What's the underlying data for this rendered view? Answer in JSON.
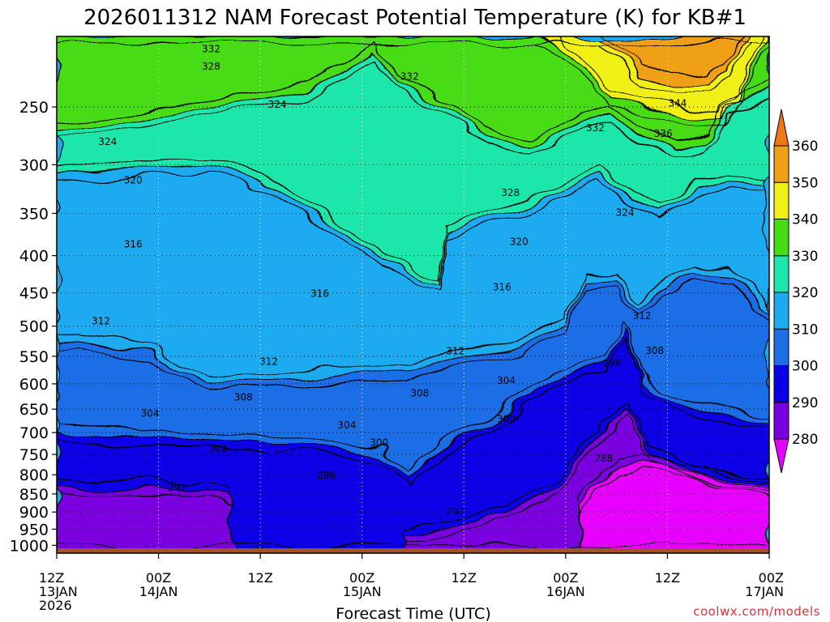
{
  "chart_data": {
    "type": "contour",
    "title": "2026011312 NAM Forecast Potential Temperature (K) for KB#1",
    "xlabel": "Forecast Time (UTC)",
    "credit": "coolwx.com/models",
    "x_ticks": [
      {
        "hour": 0,
        "lines": [
          "12Z",
          "13JAN",
          "2026"
        ]
      },
      {
        "hour": 12,
        "lines": [
          "00Z",
          "14JAN"
        ]
      },
      {
        "hour": 24,
        "lines": [
          "12Z"
        ]
      },
      {
        "hour": 36,
        "lines": [
          "00Z",
          "15JAN"
        ]
      },
      {
        "hour": 48,
        "lines": [
          "12Z"
        ]
      },
      {
        "hour": 60,
        "lines": [
          "00Z",
          "16JAN"
        ]
      },
      {
        "hour": 72,
        "lines": [
          "12Z"
        ]
      },
      {
        "hour": 84,
        "lines": [
          "00Z",
          "17JAN"
        ]
      }
    ],
    "y_ticks": [
      250,
      300,
      350,
      400,
      450,
      500,
      550,
      600,
      650,
      700,
      750,
      800,
      850,
      900,
      950,
      1000
    ],
    "y_range": [
      1025,
      200
    ],
    "y_scale": "log",
    "colorbar": {
      "levels": [
        280,
        290,
        300,
        310,
        320,
        330,
        340,
        350,
        360
      ],
      "colors": [
        "#e600ff",
        "#7a00e0",
        "#0a00e6",
        "#1e6ee6",
        "#1eaaf0",
        "#1ee6aa",
        "#46dc14",
        "#f0f014",
        "#f0a014",
        "#f07814"
      ]
    },
    "surface_color": "#a0522d",
    "contour_labels": [
      {
        "text": "332",
        "hour": 18.2,
        "p": 208
      },
      {
        "text": "328",
        "hour": 18.2,
        "p": 220
      },
      {
        "text": "332",
        "hour": 41.6,
        "p": 227
      },
      {
        "text": "324",
        "hour": 26.0,
        "p": 248
      },
      {
        "text": "344",
        "hour": 73.2,
        "p": 247
      },
      {
        "text": "332",
        "hour": 63.5,
        "p": 267
      },
      {
        "text": "336",
        "hour": 71.5,
        "p": 272
      },
      {
        "text": "324",
        "hour": 6.0,
        "p": 279
      },
      {
        "text": "320",
        "hour": 9.0,
        "p": 315
      },
      {
        "text": "328",
        "hour": 53.5,
        "p": 328
      },
      {
        "text": "324",
        "hour": 67.0,
        "p": 349
      },
      {
        "text": "316",
        "hour": 9.0,
        "p": 386
      },
      {
        "text": "320",
        "hour": 54.5,
        "p": 383
      },
      {
        "text": "316",
        "hour": 31.0,
        "p": 451
      },
      {
        "text": "316",
        "hour": 52.5,
        "p": 442
      },
      {
        "text": "312",
        "hour": 5.2,
        "p": 492
      },
      {
        "text": "312",
        "hour": 69.0,
        "p": 484
      },
      {
        "text": "308",
        "hour": 70.5,
        "p": 540
      },
      {
        "text": "312",
        "hour": 25.0,
        "p": 559
      },
      {
        "text": "312",
        "hour": 47.0,
        "p": 541
      },
      {
        "text": "296",
        "hour": 65.5,
        "p": 562
      },
      {
        "text": "304",
        "hour": 53.0,
        "p": 594
      },
      {
        "text": "308",
        "hour": 42.8,
        "p": 618
      },
      {
        "text": "308",
        "hour": 22.0,
        "p": 626
      },
      {
        "text": "304",
        "hour": 11.0,
        "p": 659
      },
      {
        "text": "300",
        "hour": 53.0,
        "p": 671
      },
      {
        "text": "304",
        "hour": 34.2,
        "p": 684
      },
      {
        "text": "300",
        "hour": 38.0,
        "p": 723
      },
      {
        "text": "300",
        "hour": 19.0,
        "p": 738
      },
      {
        "text": "288",
        "hour": 64.5,
        "p": 760
      },
      {
        "text": "296",
        "hour": 31.8,
        "p": 802
      },
      {
        "text": "292",
        "hour": 14.2,
        "p": 833
      },
      {
        "text": "292",
        "hour": 47.0,
        "p": 899
      }
    ]
  }
}
